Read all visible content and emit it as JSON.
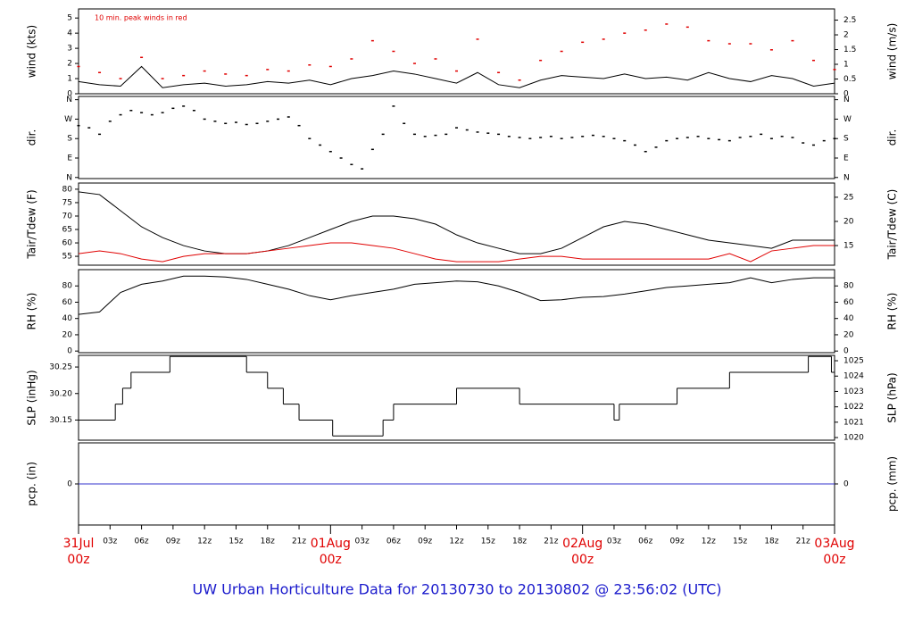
{
  "title": "UW Urban Horticulture Data for 20130730  to  20130802 @ 23:56:02  (UTC)",
  "chart_data": [
    {
      "type": "line",
      "ylabel": "wind (kts)",
      "y2label": "wind (m/s)",
      "annotation": "10 min. peak winds in red",
      "xlim": [
        0,
        72
      ],
      "ylim": [
        0,
        5.6
      ],
      "yticks": [
        0,
        1,
        2,
        3,
        4,
        5
      ],
      "y2lim": [
        0,
        2.88
      ],
      "y2ticks": [
        0,
        0.5,
        1,
        1.5,
        2,
        2.5
      ],
      "x": [
        0,
        2,
        4,
        6,
        8,
        10,
        12,
        14,
        16,
        18,
        20,
        22,
        24,
        26,
        28,
        30,
        32,
        34,
        36,
        38,
        40,
        42,
        44,
        46,
        48,
        50,
        52,
        54,
        56,
        58,
        60,
        62,
        64,
        66,
        68,
        70,
        72
      ],
      "series": [
        {
          "style": "line",
          "color": "#000000",
          "values": [
            0.8,
            0.6,
            0.5,
            1.8,
            0.4,
            0.6,
            0.7,
            0.5,
            0.6,
            0.8,
            0.7,
            0.9,
            0.6,
            1.0,
            1.2,
            1.5,
            1.3,
            1.0,
            0.7,
            1.4,
            0.6,
            0.4,
            0.9,
            1.2,
            1.1,
            1.0,
            1.3,
            1.0,
            1.1,
            0.9,
            1.4,
            1.0,
            0.8,
            1.2,
            1.0,
            0.5,
            0.7
          ]
        },
        {
          "style": "points",
          "color": "#e00000",
          "values": [
            1.8,
            1.4,
            1.0,
            2.4,
            1.0,
            1.2,
            1.5,
            1.3,
            1.2,
            1.6,
            1.5,
            1.9,
            1.8,
            2.3,
            3.5,
            2.8,
            2.0,
            2.3,
            1.5,
            3.6,
            1.4,
            0.9,
            2.2,
            2.8,
            3.4,
            3.6,
            4.0,
            4.2,
            4.6,
            4.4,
            3.5,
            3.3,
            3.3,
            2.9,
            3.5,
            2.2,
            1.6
          ]
        }
      ]
    },
    {
      "type": "scatter",
      "ylabel": "dir.",
      "y2label": "dir.",
      "xlim": [
        0,
        72
      ],
      "ylim": [
        -5,
        375
      ],
      "yticks": [
        {
          "value": 0,
          "label": "N"
        },
        {
          "value": 90,
          "label": "E"
        },
        {
          "value": 180,
          "label": "S"
        },
        {
          "value": 270,
          "label": "W"
        },
        {
          "value": 360,
          "label": "N"
        }
      ],
      "y2lim": [
        -5,
        375
      ],
      "y2ticks": [
        {
          "value": 0,
          "label": "N"
        },
        {
          "value": 90,
          "label": "E"
        },
        {
          "value": 180,
          "label": "S"
        },
        {
          "value": 270,
          "label": "W"
        },
        {
          "value": 360,
          "label": "N"
        }
      ],
      "x": [
        0,
        1,
        2,
        3,
        4,
        5,
        6,
        7,
        8,
        9,
        10,
        11,
        12,
        13,
        14,
        15,
        16,
        17,
        18,
        19,
        20,
        21,
        22,
        23,
        24,
        25,
        26,
        27,
        28,
        29,
        30,
        31,
        32,
        33,
        34,
        35,
        36,
        37,
        38,
        39,
        40,
        41,
        42,
        43,
        44,
        45,
        46,
        47,
        48,
        49,
        50,
        51,
        52,
        53,
        54,
        55,
        56,
        57,
        58,
        59,
        60,
        61,
        62,
        63,
        64,
        65,
        66,
        67,
        68,
        69,
        70,
        71,
        72
      ],
      "series": [
        {
          "style": "points",
          "color": "#000000",
          "values": [
            240,
            230,
            200,
            260,
            290,
            310,
            300,
            290,
            300,
            320,
            330,
            310,
            270,
            260,
            250,
            255,
            245,
            250,
            260,
            270,
            280,
            240,
            180,
            150,
            120,
            90,
            60,
            40,
            130,
            200,
            330,
            250,
            200,
            190,
            195,
            200,
            230,
            220,
            210,
            205,
            200,
            190,
            185,
            180,
            185,
            190,
            180,
            185,
            190,
            195,
            190,
            180,
            170,
            150,
            120,
            140,
            170,
            180,
            185,
            190,
            180,
            175,
            170,
            185,
            190,
            200,
            180,
            190,
            185,
            160,
            150,
            170,
            180
          ]
        }
      ]
    },
    {
      "type": "line",
      "ylabel": "Tair/Tdew (F)",
      "y2label": "Tair/Tdew (C)",
      "xlim": [
        0,
        72
      ],
      "ylim": [
        51.7,
        82.3
      ],
      "yticks": [
        55,
        60,
        65,
        70,
        75,
        80
      ],
      "y2lim": [
        10.94,
        27.94
      ],
      "y2ticks": [
        15,
        20,
        25
      ],
      "x": [
        0,
        2,
        4,
        6,
        8,
        10,
        12,
        14,
        16,
        18,
        20,
        22,
        24,
        26,
        28,
        30,
        32,
        34,
        36,
        38,
        40,
        42,
        44,
        46,
        48,
        50,
        52,
        54,
        56,
        58,
        60,
        62,
        64,
        66,
        68,
        70,
        72
      ],
      "series": [
        {
          "style": "line",
          "color": "#000000",
          "values": [
            79,
            78,
            72,
            66,
            62,
            59,
            57,
            56,
            56,
            57,
            59,
            62,
            65,
            68,
            70,
            70,
            69,
            67,
            63,
            60,
            58,
            56,
            56,
            58,
            62,
            66,
            68,
            67,
            65,
            63,
            61,
            60,
            59,
            58,
            61,
            61,
            61
          ]
        },
        {
          "style": "line",
          "color": "#e00000",
          "values": [
            56,
            57,
            56,
            54,
            53,
            55,
            56,
            56,
            56,
            57,
            58,
            59,
            60,
            60,
            59,
            58,
            56,
            54,
            53,
            53,
            53,
            54,
            55,
            55,
            54,
            54,
            54,
            54,
            54,
            54,
            54,
            56,
            53,
            57,
            58,
            59,
            59
          ]
        }
      ]
    },
    {
      "type": "line",
      "ylabel": "RH (%)",
      "y2label": "RH (%)",
      "xlim": [
        0,
        72
      ],
      "ylim": [
        -2,
        100
      ],
      "yticks": [
        0,
        20,
        40,
        60,
        80
      ],
      "y2lim": [
        -2,
        100
      ],
      "y2ticks": [
        0,
        20,
        40,
        60,
        80
      ],
      "x": [
        0,
        2,
        4,
        6,
        8,
        10,
        12,
        14,
        16,
        18,
        20,
        22,
        24,
        26,
        28,
        30,
        32,
        34,
        36,
        38,
        40,
        42,
        44,
        46,
        48,
        50,
        52,
        54,
        56,
        58,
        60,
        62,
        64,
        66,
        68,
        70,
        72
      ],
      "series": [
        {
          "style": "line",
          "color": "#000000",
          "values": [
            45,
            48,
            72,
            82,
            86,
            92,
            92,
            91,
            88,
            82,
            76,
            68,
            63,
            68,
            72,
            76,
            82,
            84,
            86,
            85,
            80,
            72,
            62,
            63,
            66,
            67,
            70,
            74,
            78,
            80,
            82,
            84,
            90,
            84,
            88,
            90,
            90
          ]
        }
      ]
    },
    {
      "type": "step",
      "ylabel": "SLP (inHg)",
      "y2label": "SLP (hPa)",
      "xlim": [
        0,
        72
      ],
      "ylim": [
        30.112,
        30.272
      ],
      "yticks": [
        30.15,
        {
          "value": 30.2,
          "label": "30.20"
        },
        30.25
      ],
      "y2lim": [
        1019.83,
        1025.35
      ],
      "y2ticks": [
        1020,
        1021,
        1022,
        1023,
        1024,
        1025
      ],
      "x": [
        0,
        3.5,
        4.2,
        5,
        8.7,
        16,
        18,
        19.5,
        21,
        24.2,
        29,
        30,
        36,
        42,
        51,
        51.5,
        57,
        62,
        69.5,
        71.7,
        72
      ],
      "series": [
        {
          "style": "step",
          "color": "#000000",
          "values": [
            30.15,
            30.18,
            30.21,
            30.24,
            30.27,
            30.24,
            30.21,
            30.18,
            30.15,
            30.12,
            30.15,
            30.18,
            30.21,
            30.18,
            30.15,
            30.18,
            30.21,
            30.24,
            30.27,
            30.24,
            30.24
          ]
        }
      ]
    },
    {
      "type": "line",
      "ylabel": "pcp. (in)",
      "y2label": "pcp. (mm)",
      "xlim": [
        0,
        72
      ],
      "ylim": [
        -1,
        1
      ],
      "yticks": [
        0
      ],
      "y2lim": [
        -25.4,
        25.4
      ],
      "y2ticks": [
        0
      ],
      "x": [
        0,
        72
      ],
      "series": [
        {
          "style": "line",
          "color": "#3333cc",
          "values": [
            0,
            0
          ]
        }
      ],
      "xticks": [
        {
          "value": 0,
          "label": "00z"
        },
        {
          "value": 3,
          "label": "03z"
        },
        {
          "value": 6,
          "label": "06z"
        },
        {
          "value": 9,
          "label": "09z"
        },
        {
          "value": 12,
          "label": "12z"
        },
        {
          "value": 15,
          "label": "15z"
        },
        {
          "value": 18,
          "label": "18z"
        },
        {
          "value": 21,
          "label": "21z"
        },
        {
          "value": 24,
          "label": "00z"
        },
        {
          "value": 27,
          "label": "03z"
        },
        {
          "value": 30,
          "label": "06z"
        },
        {
          "value": 33,
          "label": "09z"
        },
        {
          "value": 36,
          "label": "12z"
        },
        {
          "value": 39,
          "label": "15z"
        },
        {
          "value": 42,
          "label": "18z"
        },
        {
          "value": 45,
          "label": "21z"
        },
        {
          "value": 48,
          "label": "00z"
        },
        {
          "value": 51,
          "label": "03z"
        },
        {
          "value": 54,
          "label": "06z"
        },
        {
          "value": 57,
          "label": "09z"
        },
        {
          "value": 60,
          "label": "12z"
        },
        {
          "value": 63,
          "label": "15z"
        },
        {
          "value": 66,
          "label": "18z"
        },
        {
          "value": 69,
          "label": "21z"
        },
        {
          "value": 72,
          "label": "00z"
        }
      ],
      "date_ticks": [
        {
          "value": 0,
          "label": "31Jul"
        },
        {
          "value": 24,
          "label": "01Aug"
        },
        {
          "value": 48,
          "label": "02Aug"
        },
        {
          "value": 72,
          "label": "03Aug"
        }
      ]
    }
  ]
}
